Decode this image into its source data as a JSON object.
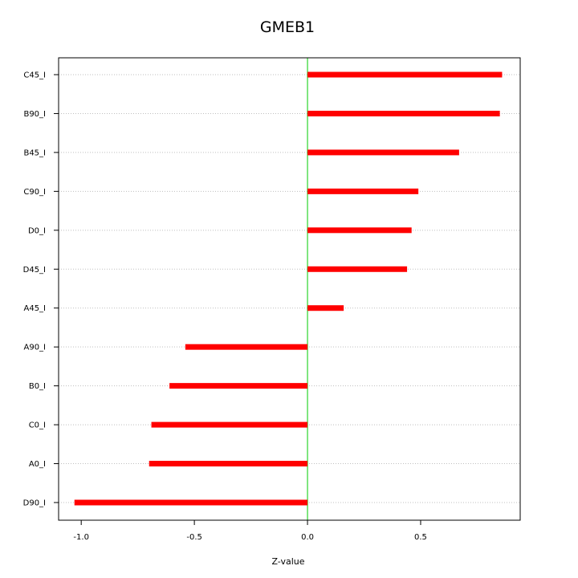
{
  "chart_data": {
    "type": "bar",
    "orientation": "horizontal",
    "title": "GMEB1",
    "xlabel": "Z-value",
    "ylabel": "",
    "categories": [
      "C45_I",
      "B90_I",
      "B45_I",
      "C90_I",
      "D0_I",
      "D45_I",
      "A45_I",
      "A90_I",
      "B0_I",
      "C0_I",
      "A0_I",
      "D90_I"
    ],
    "values": [
      0.86,
      0.85,
      0.67,
      0.49,
      0.46,
      0.44,
      0.16,
      -0.54,
      -0.61,
      -0.69,
      -0.7,
      -1.03
    ],
    "xlim": [
      -1.1,
      0.94
    ],
    "x_ticks": [
      -1.0,
      -0.5,
      0.0,
      0.5
    ],
    "x_tick_labels": [
      "-1.0",
      "-0.5",
      "0.0",
      "0.5"
    ],
    "zero_line": true,
    "grid": "horizontal dotted",
    "bar_color": "#ff0000",
    "zero_line_color": "#00cc00",
    "grid_color": "#bfbfbf"
  }
}
